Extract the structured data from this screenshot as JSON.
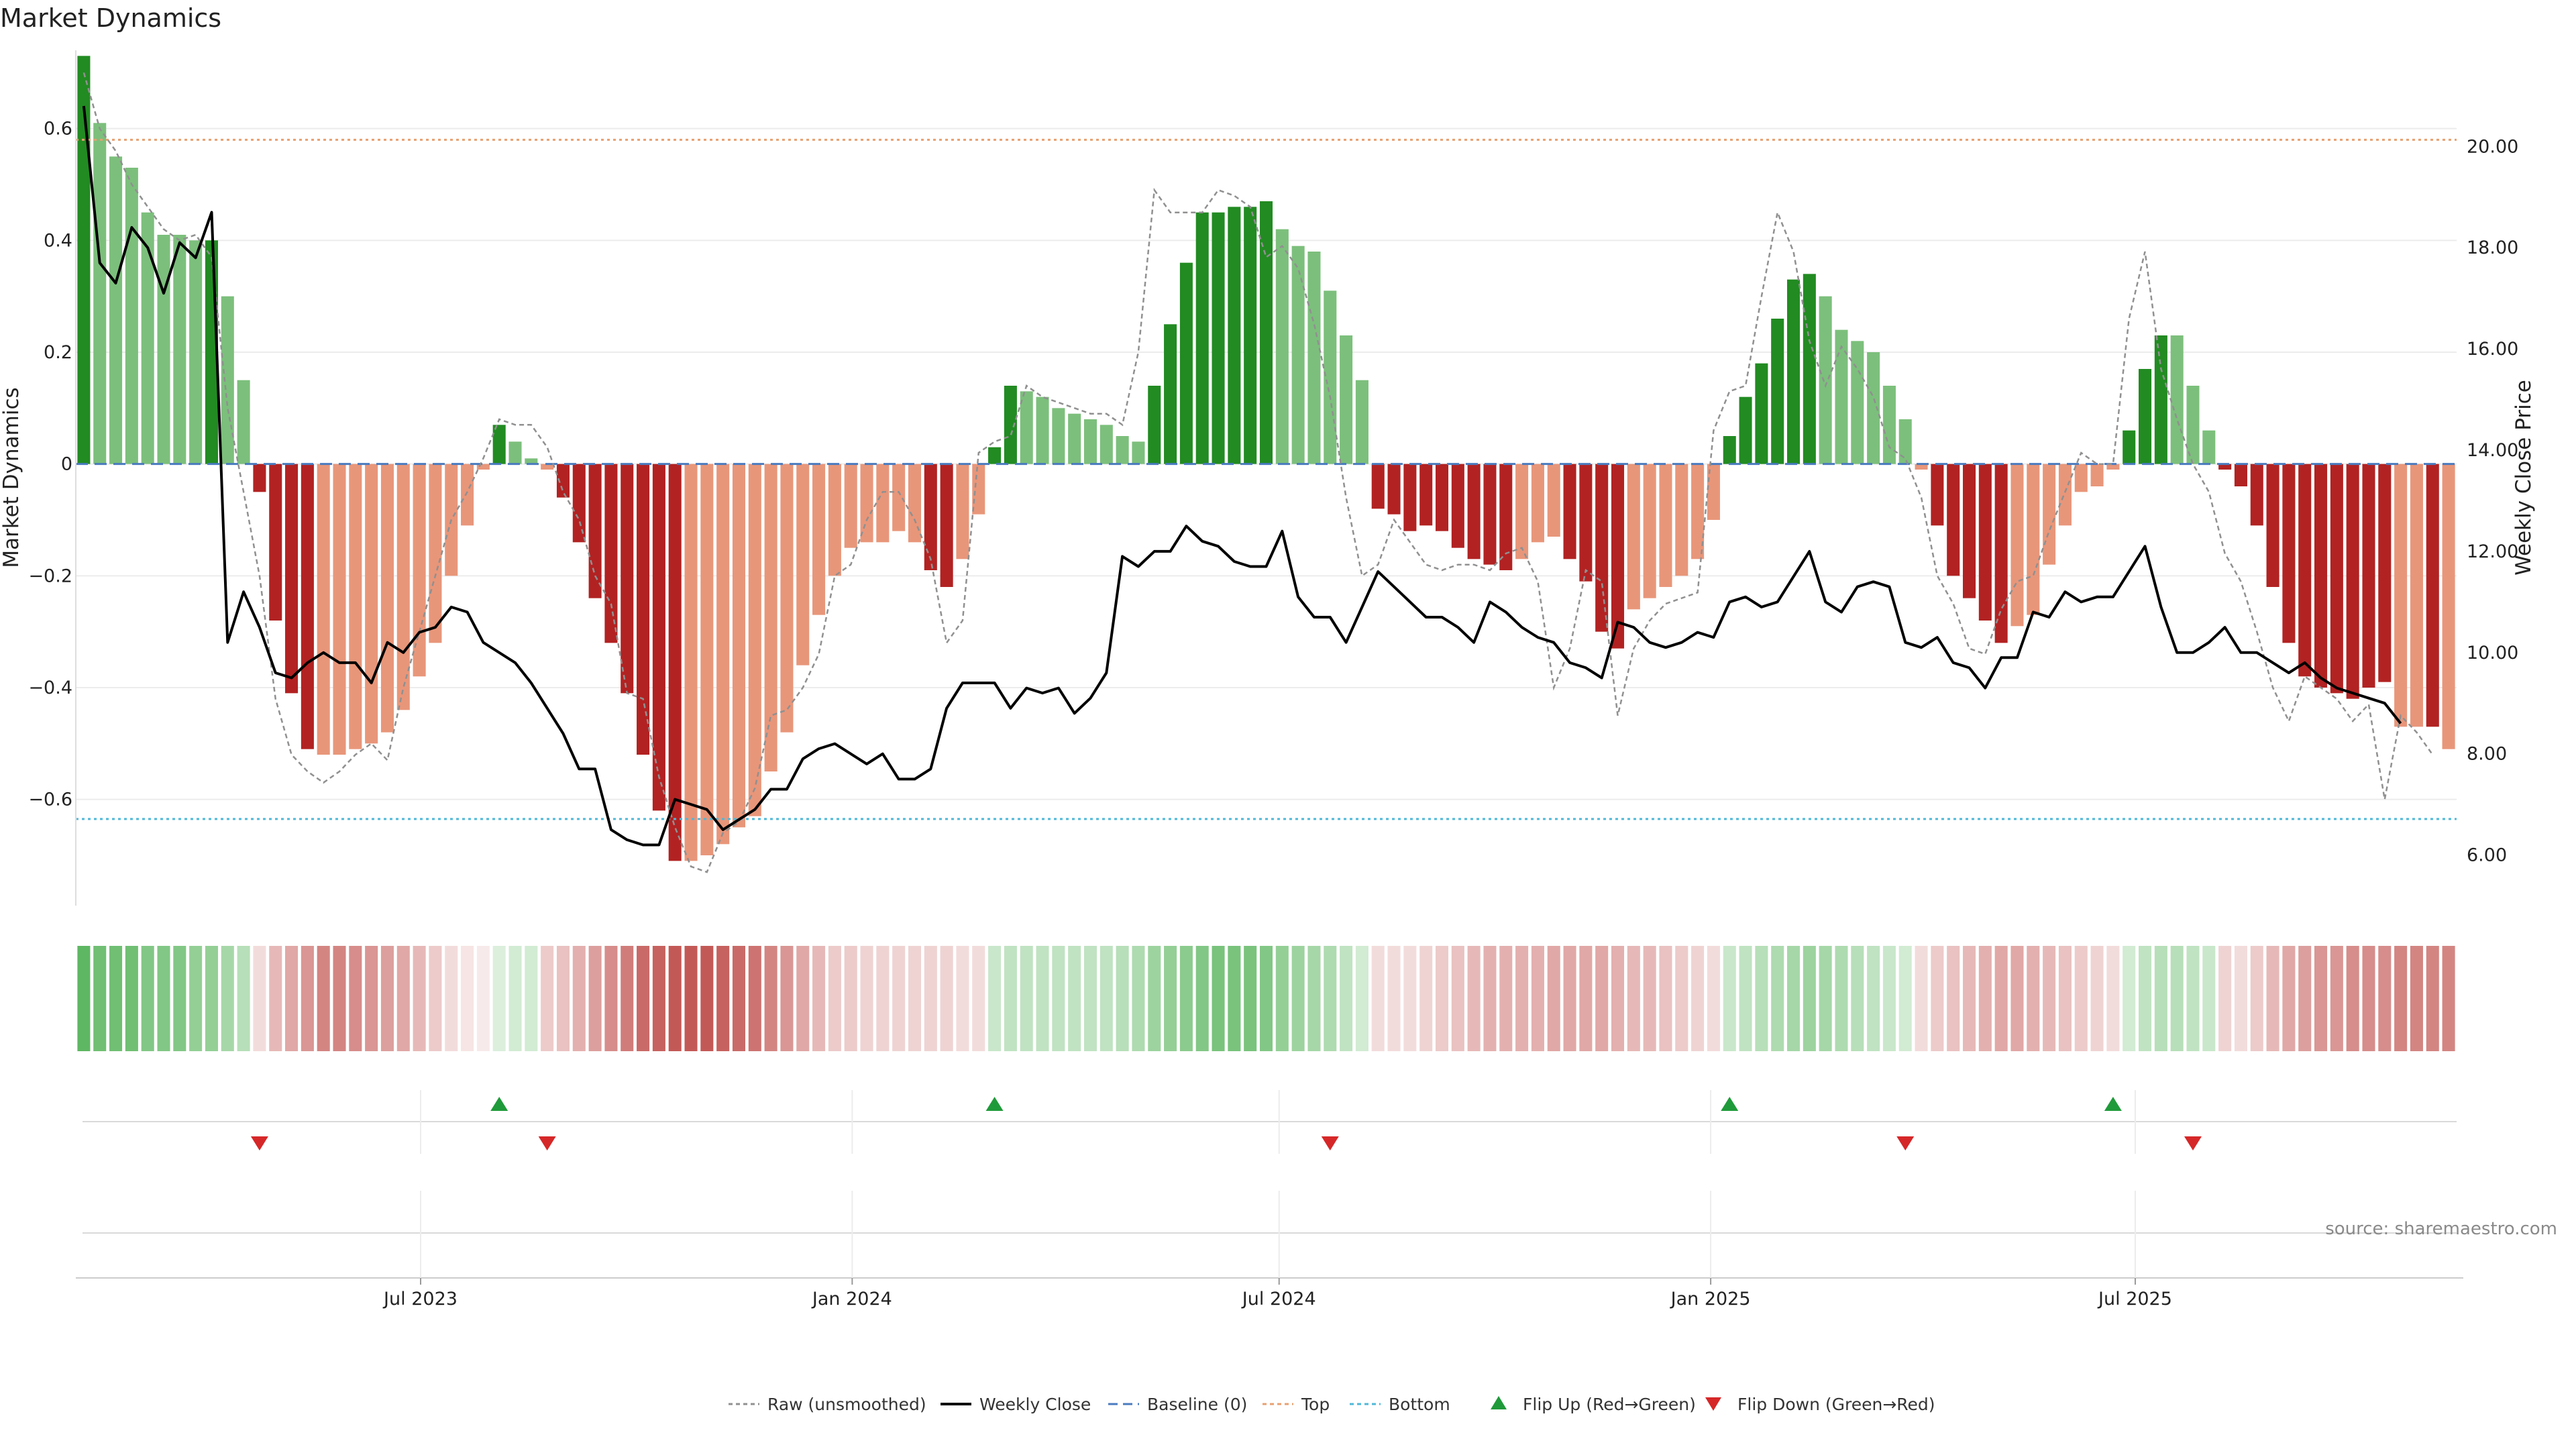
{
  "chart_data": {
    "type": "bar",
    "title": "Market Dynamics",
    "ylabel_left": "Market Dynamics",
    "ylabel_right": "Weekly Close Price",
    "ylim_left": [
      -0.79,
      0.74
    ],
    "ylim_right": [
      5.0,
      21.9
    ],
    "yticks_left": [
      -0.6,
      -0.4,
      -0.2,
      0,
      0.2,
      0.4,
      0.6
    ],
    "ytick_labels_left": [
      "−0.6",
      "−0.4",
      "−0.2",
      "0",
      "0.2",
      "0.4",
      "0.6"
    ],
    "yticks_right": [
      6,
      8,
      10,
      12,
      14,
      16,
      18,
      20
    ],
    "ytick_labels_right": [
      "6.00",
      "8.00",
      "10.00",
      "12.00",
      "14.00",
      "16.00",
      "18.00",
      "20.00"
    ],
    "x_start": "2023-02-04",
    "x_end": "2025-11-15",
    "x_ticks": [
      {
        "date": "2023-07-01",
        "label": "Jul 2023"
      },
      {
        "date": "2024-01-01",
        "label": "Jan 2024"
      },
      {
        "date": "2024-07-01",
        "label": "Jul 2024"
      },
      {
        "date": "2025-01-01",
        "label": "Jan 2025"
      },
      {
        "date": "2025-07-01",
        "label": "Jul 2025"
      }
    ],
    "bar_values": [
      0.73,
      0.61,
      0.55,
      0.53,
      0.45,
      0.41,
      0.41,
      0.4,
      0.4,
      0.3,
      0.15,
      -0.05,
      -0.28,
      -0.41,
      -0.51,
      -0.52,
      -0.52,
      -0.51,
      -0.5,
      -0.48,
      -0.44,
      -0.38,
      -0.32,
      -0.2,
      -0.11,
      -0.01,
      0.07,
      0.04,
      0.01,
      -0.01,
      -0.06,
      -0.14,
      -0.24,
      -0.32,
      -0.41,
      -0.52,
      -0.62,
      -0.71,
      -0.71,
      -0.7,
      -0.68,
      -0.65,
      -0.63,
      -0.55,
      -0.48,
      -0.36,
      -0.27,
      -0.2,
      -0.15,
      -0.14,
      -0.14,
      -0.12,
      -0.14,
      -0.19,
      -0.22,
      -0.17,
      -0.09,
      0.03,
      0.14,
      0.13,
      0.12,
      0.1,
      0.09,
      0.08,
      0.07,
      0.05,
      0.04,
      0.14,
      0.25,
      0.36,
      0.45,
      0.45,
      0.46,
      0.46,
      0.47,
      0.42,
      0.39,
      0.38,
      0.31,
      0.23,
      0.15,
      -0.08,
      -0.09,
      -0.12,
      -0.11,
      -0.12,
      -0.15,
      -0.17,
      -0.18,
      -0.19,
      -0.17,
      -0.14,
      -0.13,
      -0.17,
      -0.21,
      -0.3,
      -0.33,
      -0.26,
      -0.24,
      -0.22,
      -0.2,
      -0.17,
      -0.1,
      0.05,
      0.12,
      0.18,
      0.26,
      0.33,
      0.34,
      0.3,
      0.24,
      0.22,
      0.2,
      0.14,
      0.08,
      -0.01,
      -0.11,
      -0.2,
      -0.24,
      -0.28,
      -0.32,
      -0.29,
      -0.27,
      -0.18,
      -0.11,
      -0.05,
      -0.04,
      -0.01,
      0.06,
      0.17,
      0.23,
      0.23,
      0.14,
      0.06,
      -0.01,
      -0.04,
      -0.11,
      -0.22,
      -0.32,
      -0.38,
      -0.4,
      -0.41,
      -0.42,
      -0.4,
      -0.39,
      -0.47,
      -0.47,
      -0.47,
      -0.51
    ],
    "bar_strength": [
      "strong",
      "weak",
      "weak",
      "weak",
      "weak",
      "weak",
      "weak",
      "weak",
      "strong",
      "weak",
      "weak",
      "strong",
      "strong",
      "strong",
      "strong",
      "weak",
      "weak",
      "weak",
      "weak",
      "weak",
      "weak",
      "weak",
      "weak",
      "weak",
      "weak",
      "weak",
      "strong",
      "weak",
      "weak",
      "weak",
      "strong",
      "strong",
      "strong",
      "strong",
      "strong",
      "strong",
      "strong",
      "strong",
      "weak",
      "weak",
      "weak",
      "weak",
      "weak",
      "weak",
      "weak",
      "weak",
      "weak",
      "weak",
      "weak",
      "weak",
      "weak",
      "weak",
      "weak",
      "strong",
      "strong",
      "weak",
      "weak",
      "strong",
      "strong",
      "weak",
      "weak",
      "weak",
      "weak",
      "weak",
      "weak",
      "weak",
      "weak",
      "strong",
      "strong",
      "strong",
      "strong",
      "strong",
      "strong",
      "strong",
      "strong",
      "weak",
      "weak",
      "weak",
      "weak",
      "weak",
      "weak",
      "strong",
      "strong",
      "strong",
      "strong",
      "strong",
      "strong",
      "strong",
      "strong",
      "strong",
      "weak",
      "weak",
      "weak",
      "strong",
      "strong",
      "strong",
      "strong",
      "weak",
      "weak",
      "weak",
      "weak",
      "weak",
      "weak",
      "strong",
      "strong",
      "strong",
      "strong",
      "strong",
      "strong",
      "weak",
      "weak",
      "weak",
      "weak",
      "weak",
      "weak",
      "weak",
      "strong",
      "strong",
      "strong",
      "strong",
      "strong",
      "weak",
      "weak",
      "weak",
      "weak",
      "weak",
      "weak",
      "weak",
      "strong",
      "strong",
      "strong",
      "weak",
      "weak",
      "weak",
      "strong",
      "strong",
      "strong",
      "strong",
      "strong",
      "strong",
      "strong",
      "strong",
      "strong",
      "strong",
      "strong",
      "weak",
      "weak",
      "strong"
    ],
    "raw_values": [
      0.7,
      0.6,
      0.56,
      0.5,
      0.46,
      0.42,
      0.4,
      0.41,
      0.37,
      0.1,
      -0.05,
      -0.2,
      -0.42,
      -0.52,
      -0.55,
      -0.57,
      -0.55,
      -0.52,
      -0.5,
      -0.53,
      -0.4,
      -0.3,
      -0.2,
      -0.1,
      -0.05,
      0.01,
      0.08,
      0.07,
      0.07,
      0.03,
      -0.05,
      -0.1,
      -0.2,
      -0.25,
      -0.41,
      -0.42,
      -0.56,
      -0.65,
      -0.72,
      -0.73,
      -0.66,
      -0.64,
      -0.58,
      -0.45,
      -0.44,
      -0.4,
      -0.34,
      -0.2,
      -0.18,
      -0.1,
      -0.05,
      -0.05,
      -0.1,
      -0.17,
      -0.32,
      -0.28,
      0.02,
      0.04,
      0.05,
      0.14,
      0.12,
      0.11,
      0.1,
      0.09,
      0.09,
      0.07,
      0.2,
      0.49,
      0.45,
      0.45,
      0.45,
      0.49,
      0.48,
      0.46,
      0.37,
      0.39,
      0.35,
      0.25,
      0.12,
      -0.06,
      -0.2,
      -0.18,
      -0.1,
      -0.14,
      -0.18,
      -0.19,
      -0.18,
      -0.18,
      -0.19,
      -0.16,
      -0.15,
      -0.21,
      -0.4,
      -0.33,
      -0.19,
      -0.21,
      -0.45,
      -0.33,
      -0.28,
      -0.25,
      -0.24,
      -0.23,
      0.06,
      0.13,
      0.14,
      0.3,
      0.45,
      0.38,
      0.22,
      0.14,
      0.21,
      0.17,
      0.12,
      0.03,
      0.01,
      -0.06,
      -0.2,
      -0.25,
      -0.33,
      -0.34,
      -0.26,
      -0.21,
      -0.2,
      -0.12,
      -0.05,
      0.02,
      0.0,
      0.0,
      0.26,
      0.38,
      0.17,
      0.08,
      0.0,
      -0.05,
      -0.16,
      -0.21,
      -0.3,
      -0.4,
      -0.46,
      -0.38,
      -0.4,
      -0.42,
      -0.46,
      -0.43,
      -0.6,
      -0.45,
      -0.48,
      -0.52
    ],
    "close_values": [
      20.8,
      17.7,
      17.3,
      18.4,
      18.0,
      17.1,
      18.1,
      17.8,
      18.7,
      10.2,
      11.2,
      10.5,
      9.6,
      9.5,
      9.8,
      10.0,
      9.8,
      9.8,
      9.4,
      10.2,
      10.0,
      10.4,
      10.5,
      10.9,
      10.8,
      10.2,
      10.0,
      9.8,
      9.4,
      8.9,
      8.4,
      7.7,
      7.7,
      6.5,
      6.3,
      6.2,
      6.2,
      7.1,
      7.0,
      6.9,
      6.5,
      6.7,
      6.9,
      7.3,
      7.3,
      7.9,
      8.1,
      8.2,
      8.0,
      7.8,
      8.0,
      7.5,
      7.5,
      7.7,
      8.9,
      9.4,
      9.4,
      9.4,
      8.9,
      9.3,
      9.2,
      9.3,
      8.8,
      9.1,
      9.6,
      11.9,
      11.7,
      12.0,
      12.0,
      12.5,
      12.2,
      12.1,
      11.8,
      11.7,
      11.7,
      12.4,
      11.1,
      10.7,
      10.7,
      10.2,
      10.9,
      11.6,
      11.3,
      11.0,
      10.7,
      10.7,
      10.5,
      10.2,
      11.0,
      10.8,
      10.5,
      10.3,
      10.2,
      9.8,
      9.7,
      9.5,
      10.6,
      10.5,
      10.2,
      10.1,
      10.2,
      10.4,
      10.3,
      11.0,
      11.1,
      10.9,
      11.0,
      11.5,
      12.0,
      11.0,
      10.8,
      11.3,
      11.4,
      11.3,
      10.2,
      10.1,
      10.3,
      9.8,
      9.7,
      9.3,
      9.9,
      9.9,
      10.8,
      10.7,
      11.2,
      11.0,
      11.1,
      11.1,
      11.6,
      12.1,
      10.9,
      10.0,
      10.0,
      10.2,
      10.5,
      10.0,
      10.0,
      9.8,
      9.6,
      9.8,
      9.5,
      9.3,
      9.2,
      9.1,
      9.0,
      8.6
    ],
    "strip_levels": [
      0.9,
      0.8,
      0.8,
      0.8,
      0.7,
      0.7,
      0.7,
      0.6,
      0.6,
      0.5,
      0.4,
      0.2,
      0.4,
      0.5,
      0.6,
      0.7,
      0.7,
      0.65,
      0.6,
      0.55,
      0.5,
      0.4,
      0.3,
      0.2,
      0.15,
      0.1,
      0.2,
      0.25,
      0.25,
      0.3,
      0.35,
      0.45,
      0.55,
      0.65,
      0.75,
      0.85,
      0.9,
      0.95,
      0.95,
      0.95,
      0.9,
      0.85,
      0.8,
      0.7,
      0.6,
      0.5,
      0.4,
      0.3,
      0.3,
      0.25,
      0.25,
      0.25,
      0.25,
      0.25,
      0.25,
      0.2,
      0.2,
      0.3,
      0.35,
      0.35,
      0.35,
      0.35,
      0.35,
      0.35,
      0.35,
      0.4,
      0.45,
      0.55,
      0.6,
      0.65,
      0.7,
      0.75,
      0.75,
      0.75,
      0.7,
      0.6,
      0.55,
      0.5,
      0.45,
      0.35,
      0.25,
      0.2,
      0.2,
      0.2,
      0.25,
      0.3,
      0.35,
      0.4,
      0.45,
      0.45,
      0.45,
      0.45,
      0.5,
      0.5,
      0.5,
      0.5,
      0.45,
      0.4,
      0.4,
      0.35,
      0.3,
      0.25,
      0.2,
      0.3,
      0.35,
      0.4,
      0.45,
      0.5,
      0.55,
      0.5,
      0.45,
      0.4,
      0.35,
      0.3,
      0.25,
      0.2,
      0.3,
      0.35,
      0.4,
      0.45,
      0.5,
      0.5,
      0.45,
      0.4,
      0.35,
      0.3,
      0.25,
      0.2,
      0.25,
      0.35,
      0.4,
      0.4,
      0.35,
      0.3,
      0.25,
      0.2,
      0.3,
      0.4,
      0.5,
      0.55,
      0.6,
      0.6,
      0.65,
      0.65,
      0.65,
      0.7,
      0.7,
      0.7,
      0.7,
      0.7
    ],
    "flip_up_weeks": [
      26,
      57,
      103,
      127
    ],
    "flip_down_weeks": [
      11,
      29,
      78,
      114,
      132
    ],
    "top_level": 0.58,
    "bottom_level": -0.635,
    "baseline": 0,
    "colors": {
      "pos_strong": "#228b22",
      "pos_weak": "#7cbf7c",
      "neg_strong": "#b22222",
      "neg_weak": "#e8967a",
      "raw": "#909090",
      "close": "#000000",
      "baseline": "#4a7bbf",
      "top": "#e8a070",
      "bottom": "#4fb8d8",
      "flip_up": "#1f9a3a",
      "flip_down": "#d62728",
      "strip_pos": "#4caf50",
      "strip_neg": "#c0504d"
    },
    "legend": [
      {
        "key": "raw",
        "label": "Raw (unsmoothed)"
      },
      {
        "key": "close",
        "label": "Weekly Close"
      },
      {
        "key": "baseline",
        "label": "Baseline (0)"
      },
      {
        "key": "top",
        "label": "Top"
      },
      {
        "key": "bottom",
        "label": "Bottom"
      },
      {
        "key": "flip_up",
        "label": "Flip Up (Red→Green)"
      },
      {
        "key": "flip_down",
        "label": "Flip Down (Green→Red)"
      }
    ],
    "legend_position": "bottom-center",
    "source": "source: sharemaestro.com"
  }
}
